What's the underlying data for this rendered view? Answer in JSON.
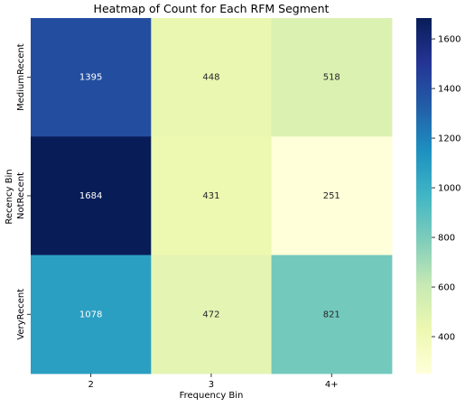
{
  "chart_data": {
    "type": "heatmap",
    "title": "Heatmap of Count for Each RFM Segment",
    "xlabel": "Frequency Bin",
    "ylabel": "Recency Bin",
    "x_categories": [
      "2",
      "3",
      "4+"
    ],
    "y_categories": [
      "MediumRecent",
      "NotRecent",
      "VeryRecent"
    ],
    "values": [
      [
        1395,
        448,
        518
      ],
      [
        1684,
        431,
        251
      ],
      [
        1078,
        472,
        821
      ]
    ],
    "colormap": "YlGnBu",
    "color_range": [
      251,
      1684
    ],
    "colorbar_ticks": [
      400,
      600,
      800,
      1000,
      1200,
      1400,
      1600
    ]
  }
}
